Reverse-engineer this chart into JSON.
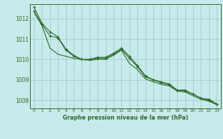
{
  "bg_color": "#c8eaea",
  "grid_color": "#9ecece",
  "line_color": "#2d6a2d",
  "title": "Graphe pression niveau de la mer (hPa)",
  "ylim": [
    1007.6,
    1012.7
  ],
  "xlim": [
    -0.5,
    23.5
  ],
  "yticks": [
    1008,
    1009,
    1010,
    1011,
    1012
  ],
  "xticks": [
    0,
    1,
    2,
    3,
    4,
    5,
    6,
    7,
    8,
    9,
    10,
    11,
    12,
    13,
    14,
    15,
    16,
    17,
    18,
    19,
    20,
    21,
    22,
    23
  ],
  "series1": [
    1012.55,
    1011.75,
    1011.35,
    1011.1,
    1010.5,
    1010.2,
    1010.0,
    1010.0,
    1010.1,
    1010.1,
    1010.3,
    1010.55,
    1010.15,
    1009.7,
    1009.2,
    1009.0,
    1008.9,
    1008.8,
    1008.5,
    1008.5,
    1008.3,
    1008.1,
    1008.05,
    1007.82
  ],
  "series2": [
    1012.35,
    1011.7,
    1011.15,
    1011.05,
    1010.45,
    1010.15,
    1010.0,
    1010.0,
    1010.05,
    1010.05,
    1010.25,
    1010.5,
    1010.05,
    1009.65,
    1009.15,
    1009.0,
    1008.85,
    1008.75,
    1008.5,
    1008.45,
    1008.3,
    1008.1,
    1008.0,
    1007.82
  ],
  "series3": [
    1012.3,
    1011.65,
    1010.55,
    1010.25,
    1010.15,
    1010.05,
    1010.0,
    1009.95,
    1010.0,
    1010.0,
    1010.2,
    1010.45,
    1009.8,
    1009.5,
    1009.05,
    1008.9,
    1008.78,
    1008.7,
    1008.45,
    1008.4,
    1008.22,
    1008.05,
    1007.95,
    1007.78
  ]
}
